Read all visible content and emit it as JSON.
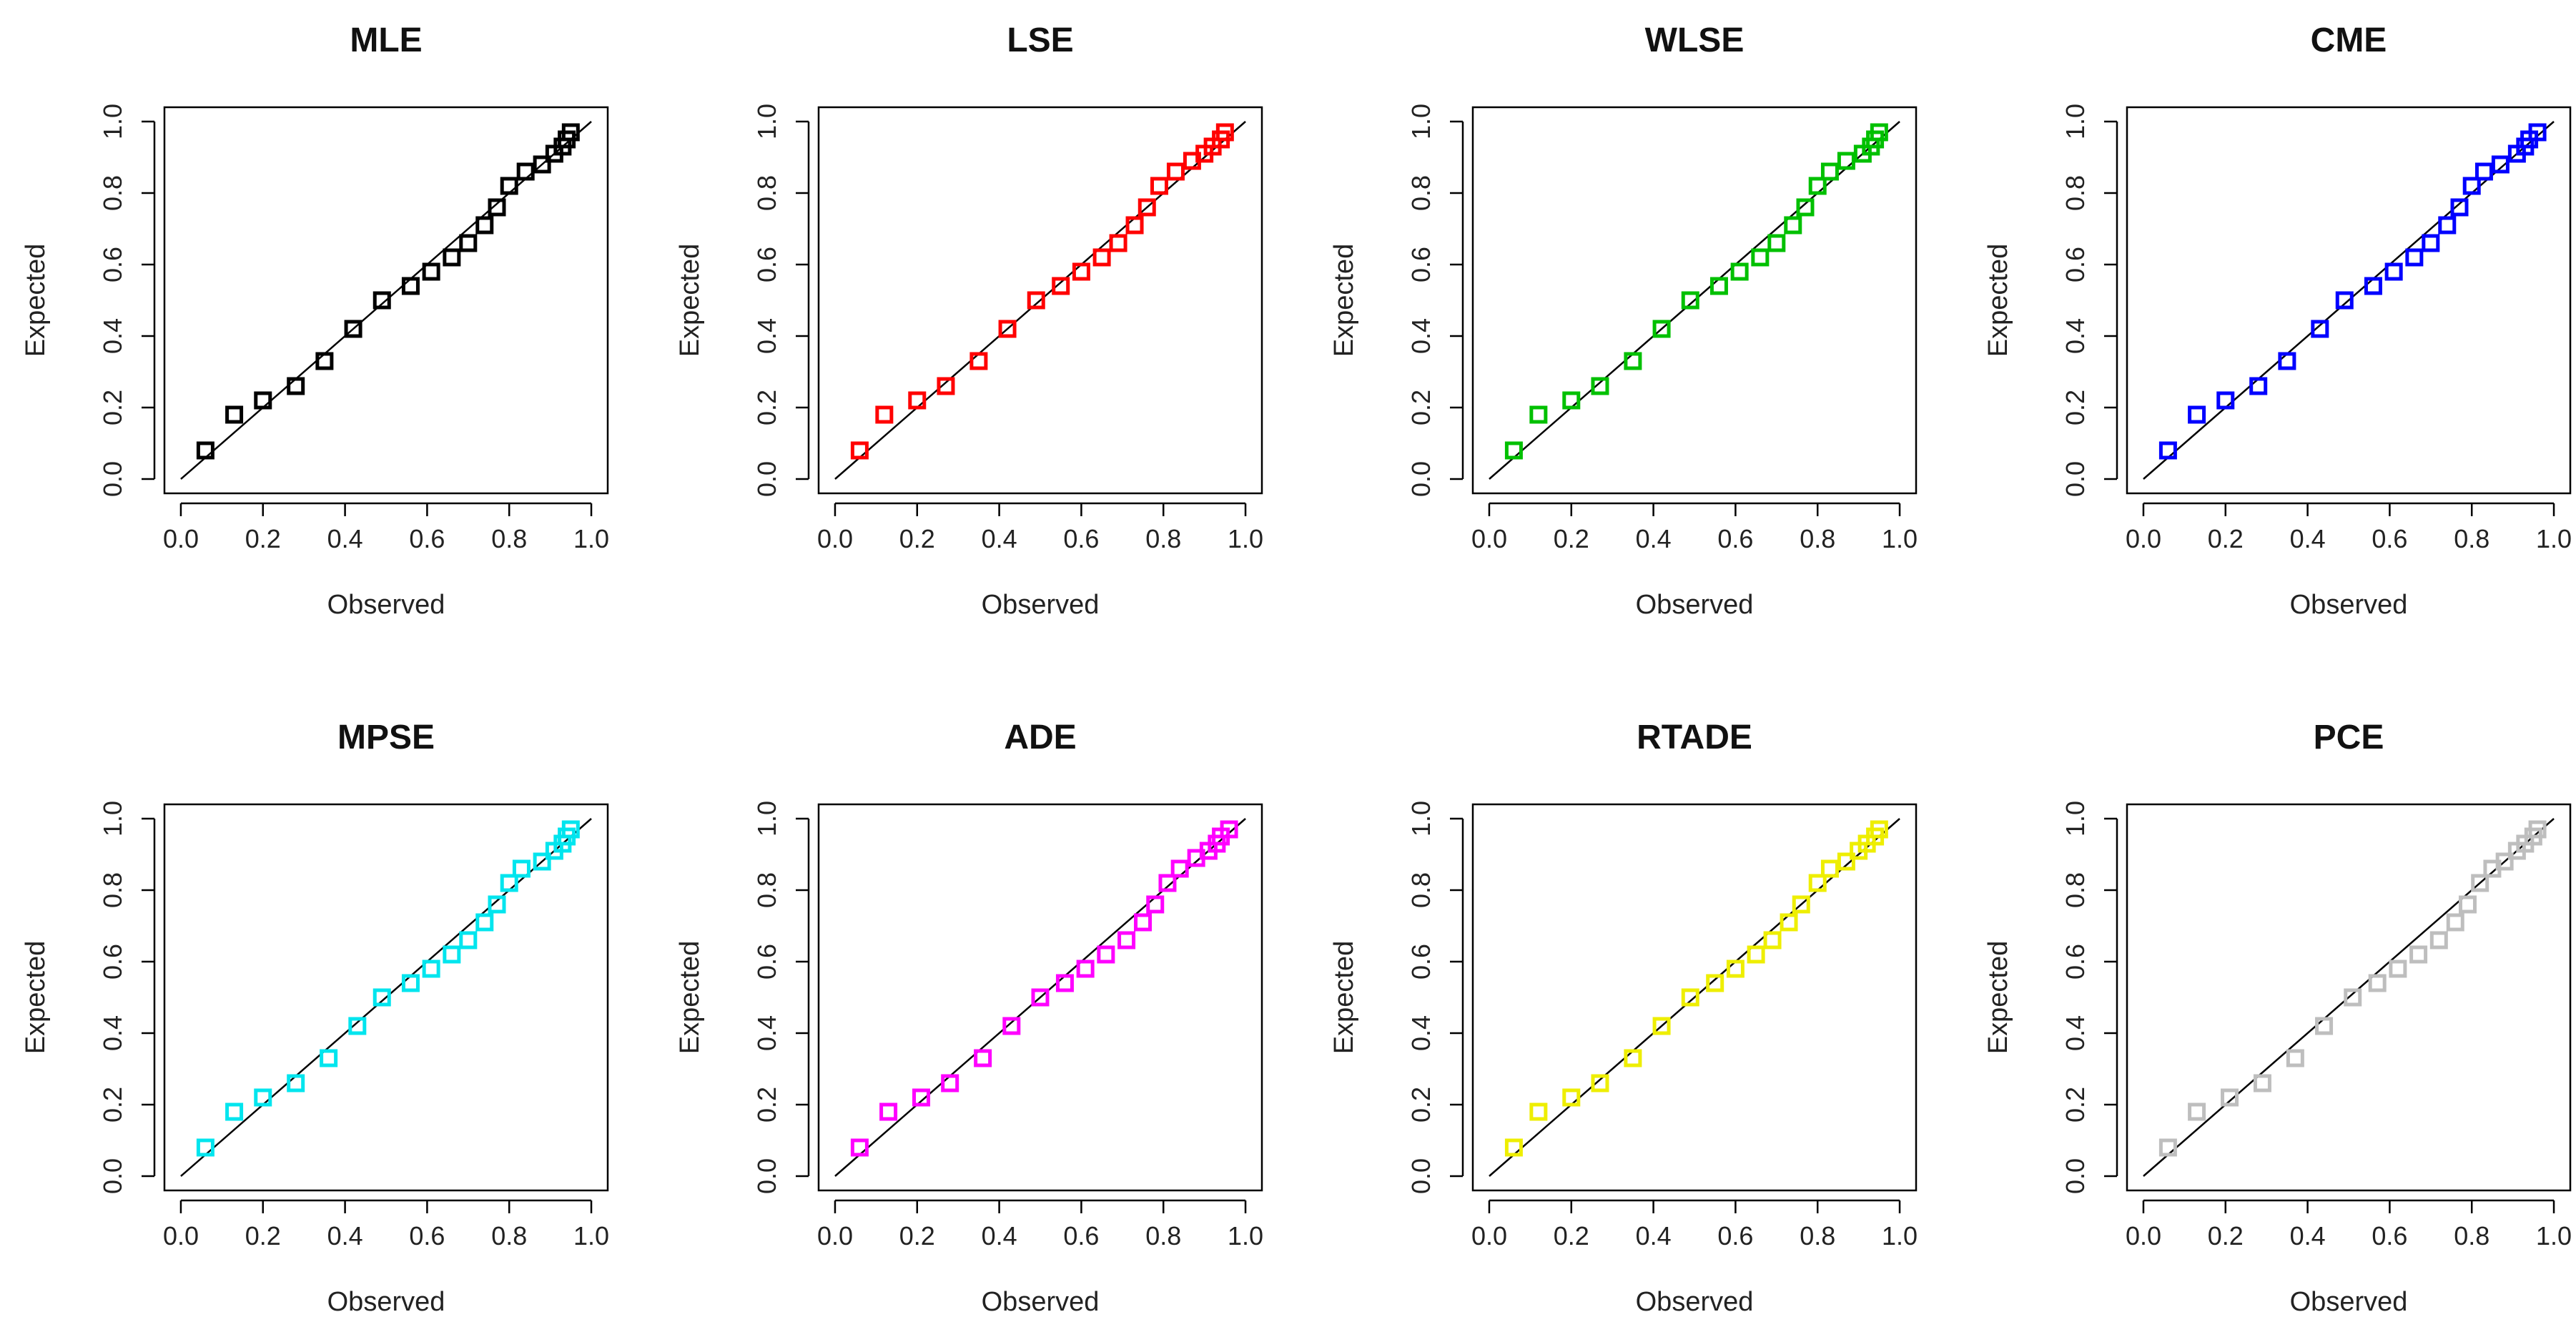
{
  "chart_data": [
    {
      "type": "scatter",
      "title": "MLE",
      "xlabel": "Observed",
      "ylabel": "Expected",
      "xlim": [
        0,
        1
      ],
      "ylim": [
        0,
        1
      ],
      "ticks": [
        "0.0",
        "0.2",
        "0.4",
        "0.6",
        "0.8",
        "1.0"
      ],
      "color": "#000000",
      "points": [
        [
          0.06,
          0.08
        ],
        [
          0.13,
          0.18
        ],
        [
          0.2,
          0.22
        ],
        [
          0.28,
          0.26
        ],
        [
          0.35,
          0.33
        ],
        [
          0.42,
          0.42
        ],
        [
          0.49,
          0.5
        ],
        [
          0.56,
          0.54
        ],
        [
          0.61,
          0.58
        ],
        [
          0.66,
          0.62
        ],
        [
          0.7,
          0.66
        ],
        [
          0.74,
          0.71
        ],
        [
          0.77,
          0.76
        ],
        [
          0.8,
          0.82
        ],
        [
          0.84,
          0.86
        ],
        [
          0.88,
          0.88
        ],
        [
          0.91,
          0.91
        ],
        [
          0.93,
          0.93
        ],
        [
          0.94,
          0.95
        ],
        [
          0.95,
          0.97
        ]
      ]
    },
    {
      "type": "scatter",
      "title": "LSE",
      "xlabel": "Observed",
      "ylabel": "Expected",
      "xlim": [
        0,
        1
      ],
      "ylim": [
        0,
        1
      ],
      "ticks": [
        "0.0",
        "0.2",
        "0.4",
        "0.6",
        "0.8",
        "1.0"
      ],
      "color": "#ff0000",
      "points": [
        [
          0.06,
          0.08
        ],
        [
          0.12,
          0.18
        ],
        [
          0.2,
          0.22
        ],
        [
          0.27,
          0.26
        ],
        [
          0.35,
          0.33
        ],
        [
          0.42,
          0.42
        ],
        [
          0.49,
          0.5
        ],
        [
          0.55,
          0.54
        ],
        [
          0.6,
          0.58
        ],
        [
          0.65,
          0.62
        ],
        [
          0.69,
          0.66
        ],
        [
          0.73,
          0.71
        ],
        [
          0.76,
          0.76
        ],
        [
          0.79,
          0.82
        ],
        [
          0.83,
          0.86
        ],
        [
          0.87,
          0.89
        ],
        [
          0.9,
          0.91
        ],
        [
          0.92,
          0.93
        ],
        [
          0.94,
          0.95
        ],
        [
          0.95,
          0.97
        ]
      ]
    },
    {
      "type": "scatter",
      "title": "WLSE",
      "xlabel": "Observed",
      "ylabel": "Expected",
      "xlim": [
        0,
        1
      ],
      "ylim": [
        0,
        1
      ],
      "ticks": [
        "0.0",
        "0.2",
        "0.4",
        "0.6",
        "0.8",
        "1.0"
      ],
      "color": "#00c000",
      "points": [
        [
          0.06,
          0.08
        ],
        [
          0.12,
          0.18
        ],
        [
          0.2,
          0.22
        ],
        [
          0.27,
          0.26
        ],
        [
          0.35,
          0.33
        ],
        [
          0.42,
          0.42
        ],
        [
          0.49,
          0.5
        ],
        [
          0.56,
          0.54
        ],
        [
          0.61,
          0.58
        ],
        [
          0.66,
          0.62
        ],
        [
          0.7,
          0.66
        ],
        [
          0.74,
          0.71
        ],
        [
          0.77,
          0.76
        ],
        [
          0.8,
          0.82
        ],
        [
          0.83,
          0.86
        ],
        [
          0.87,
          0.89
        ],
        [
          0.91,
          0.91
        ],
        [
          0.93,
          0.93
        ],
        [
          0.94,
          0.95
        ],
        [
          0.95,
          0.97
        ]
      ]
    },
    {
      "type": "scatter",
      "title": "CME",
      "xlabel": "Observed",
      "ylabel": "Expected",
      "xlim": [
        0,
        1
      ],
      "ylim": [
        0,
        1
      ],
      "ticks": [
        "0.0",
        "0.2",
        "0.4",
        "0.6",
        "0.8",
        "1.0"
      ],
      "color": "#0000ff",
      "points": [
        [
          0.06,
          0.08
        ],
        [
          0.13,
          0.18
        ],
        [
          0.2,
          0.22
        ],
        [
          0.28,
          0.26
        ],
        [
          0.35,
          0.33
        ],
        [
          0.43,
          0.42
        ],
        [
          0.49,
          0.5
        ],
        [
          0.56,
          0.54
        ],
        [
          0.61,
          0.58
        ],
        [
          0.66,
          0.62
        ],
        [
          0.7,
          0.66
        ],
        [
          0.74,
          0.71
        ],
        [
          0.77,
          0.76
        ],
        [
          0.8,
          0.82
        ],
        [
          0.83,
          0.86
        ],
        [
          0.87,
          0.88
        ],
        [
          0.91,
          0.91
        ],
        [
          0.93,
          0.93
        ],
        [
          0.94,
          0.95
        ],
        [
          0.96,
          0.97
        ]
      ]
    },
    {
      "type": "scatter",
      "title": "MPSE",
      "xlabel": "Observed",
      "ylabel": "Expected",
      "xlim": [
        0,
        1
      ],
      "ylim": [
        0,
        1
      ],
      "ticks": [
        "0.0",
        "0.2",
        "0.4",
        "0.6",
        "0.8",
        "1.0"
      ],
      "color": "#00e5ee",
      "points": [
        [
          0.06,
          0.08
        ],
        [
          0.13,
          0.18
        ],
        [
          0.2,
          0.22
        ],
        [
          0.28,
          0.26
        ],
        [
          0.36,
          0.33
        ],
        [
          0.43,
          0.42
        ],
        [
          0.49,
          0.5
        ],
        [
          0.56,
          0.54
        ],
        [
          0.61,
          0.58
        ],
        [
          0.66,
          0.62
        ],
        [
          0.7,
          0.66
        ],
        [
          0.74,
          0.71
        ],
        [
          0.77,
          0.76
        ],
        [
          0.8,
          0.82
        ],
        [
          0.83,
          0.86
        ],
        [
          0.88,
          0.88
        ],
        [
          0.91,
          0.91
        ],
        [
          0.93,
          0.93
        ],
        [
          0.94,
          0.95
        ],
        [
          0.95,
          0.97
        ]
      ]
    },
    {
      "type": "scatter",
      "title": "ADE",
      "xlabel": "Observed",
      "ylabel": "Expected",
      "xlim": [
        0,
        1
      ],
      "ylim": [
        0,
        1
      ],
      "ticks": [
        "0.0",
        "0.2",
        "0.4",
        "0.6",
        "0.8",
        "1.0"
      ],
      "color": "#ff00ff",
      "points": [
        [
          0.06,
          0.08
        ],
        [
          0.13,
          0.18
        ],
        [
          0.21,
          0.22
        ],
        [
          0.28,
          0.26
        ],
        [
          0.36,
          0.33
        ],
        [
          0.43,
          0.42
        ],
        [
          0.5,
          0.5
        ],
        [
          0.56,
          0.54
        ],
        [
          0.61,
          0.58
        ],
        [
          0.66,
          0.62
        ],
        [
          0.71,
          0.66
        ],
        [
          0.75,
          0.71
        ],
        [
          0.78,
          0.76
        ],
        [
          0.81,
          0.82
        ],
        [
          0.84,
          0.86
        ],
        [
          0.88,
          0.89
        ],
        [
          0.91,
          0.91
        ],
        [
          0.93,
          0.93
        ],
        [
          0.94,
          0.95
        ],
        [
          0.96,
          0.97
        ]
      ]
    },
    {
      "type": "scatter",
      "title": "RTADE",
      "xlabel": "Observed",
      "ylabel": "Expected",
      "xlim": [
        0,
        1
      ],
      "ylim": [
        0,
        1
      ],
      "ticks": [
        "0.0",
        "0.2",
        "0.4",
        "0.6",
        "0.8",
        "1.0"
      ],
      "color": "#eeee00",
      "points": [
        [
          0.06,
          0.08
        ],
        [
          0.12,
          0.18
        ],
        [
          0.2,
          0.22
        ],
        [
          0.27,
          0.26
        ],
        [
          0.35,
          0.33
        ],
        [
          0.42,
          0.42
        ],
        [
          0.49,
          0.5
        ],
        [
          0.55,
          0.54
        ],
        [
          0.6,
          0.58
        ],
        [
          0.65,
          0.62
        ],
        [
          0.69,
          0.66
        ],
        [
          0.73,
          0.71
        ],
        [
          0.76,
          0.76
        ],
        [
          0.8,
          0.82
        ],
        [
          0.83,
          0.86
        ],
        [
          0.87,
          0.88
        ],
        [
          0.9,
          0.91
        ],
        [
          0.92,
          0.93
        ],
        [
          0.94,
          0.95
        ],
        [
          0.95,
          0.97
        ]
      ]
    },
    {
      "type": "scatter",
      "title": "PCE",
      "xlabel": "Observed",
      "ylabel": "Expected",
      "xlim": [
        0,
        1
      ],
      "ylim": [
        0,
        1
      ],
      "ticks": [
        "0.0",
        "0.2",
        "0.4",
        "0.6",
        "0.8",
        "1.0"
      ],
      "color": "#bebebe",
      "points": [
        [
          0.06,
          0.08
        ],
        [
          0.13,
          0.18
        ],
        [
          0.21,
          0.22
        ],
        [
          0.29,
          0.26
        ],
        [
          0.37,
          0.33
        ],
        [
          0.44,
          0.42
        ],
        [
          0.51,
          0.5
        ],
        [
          0.57,
          0.54
        ],
        [
          0.62,
          0.58
        ],
        [
          0.67,
          0.62
        ],
        [
          0.72,
          0.66
        ],
        [
          0.76,
          0.71
        ],
        [
          0.79,
          0.76
        ],
        [
          0.82,
          0.82
        ],
        [
          0.85,
          0.86
        ],
        [
          0.88,
          0.88
        ],
        [
          0.91,
          0.91
        ],
        [
          0.93,
          0.93
        ],
        [
          0.95,
          0.95
        ],
        [
          0.96,
          0.97
        ]
      ]
    }
  ]
}
